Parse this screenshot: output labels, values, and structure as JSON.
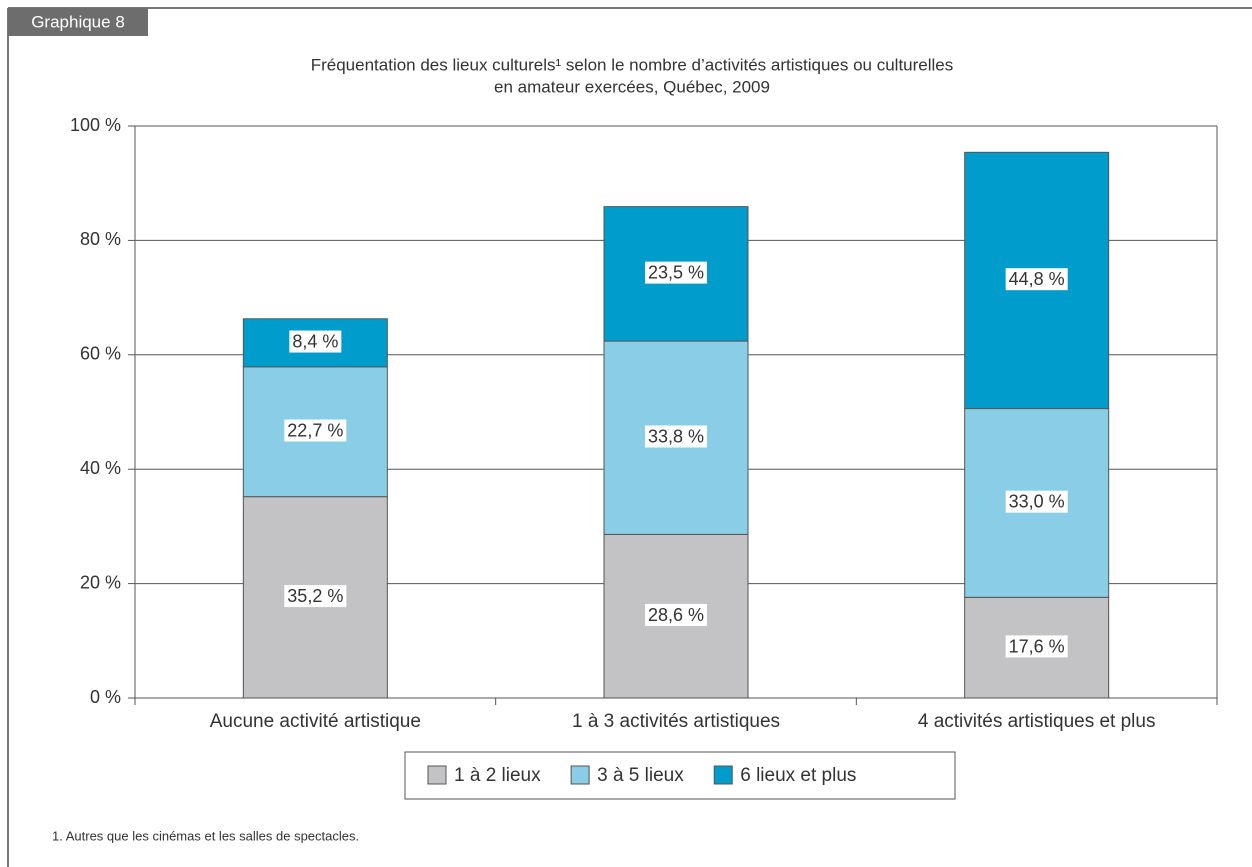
{
  "header": {
    "label": "Graphique 8"
  },
  "footnote": "1. Autres que les cinémas et les salles de spectacles.",
  "chart_data": {
    "type": "stacked_bar",
    "title": [
      "Fréquentation des lieux culturels¹ selon le nombre d’activités artistiques ou culturelles",
      "en amateur exercées, Québec, 2009"
    ],
    "categories": [
      "Aucune activité artistique",
      "1 à 3 activités artistiques",
      "4 activités artistiques et plus"
    ],
    "series": [
      {
        "name": "1 à 2 lieux",
        "color": "#c3c3c5",
        "values": [
          35.2,
          28.6,
          17.6
        ],
        "value_labels": [
          "35,2 %",
          "28,6 %",
          "17,6 %"
        ]
      },
      {
        "name": "3 à 5 lieux",
        "color": "#89cde7",
        "values": [
          22.7,
          33.8,
          33.0
        ],
        "value_labels": [
          "22,7 %",
          "33,8 %",
          "33,0 %"
        ]
      },
      {
        "name": "6 lieux et plus",
        "color": "#009ccc",
        "values": [
          8.4,
          23.5,
          44.8
        ],
        "value_labels": [
          "8,4 %",
          "23,5 %",
          "44,8 %"
        ]
      }
    ],
    "ylim": [
      0,
      100
    ],
    "yticks": [
      {
        "value": 0,
        "label": "0 %"
      },
      {
        "value": 20,
        "label": "20 %"
      },
      {
        "value": 40,
        "label": "40 %"
      },
      {
        "value": 60,
        "label": "60 %"
      },
      {
        "value": 80,
        "label": "80 %"
      },
      {
        "value": 100,
        "label": "100 %"
      }
    ],
    "grid": true,
    "legend": "bottom"
  }
}
